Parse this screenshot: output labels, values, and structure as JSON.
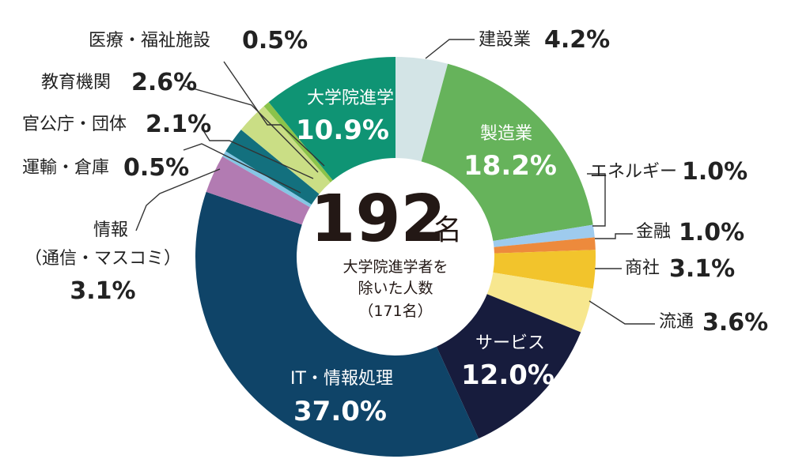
{
  "chart_data": {
    "type": "pie",
    "total": {
      "value": "192",
      "unit": "名",
      "caption_line1": "大学院進学者を",
      "caption_line2": "除いた人数",
      "caption_line3": "（171名）"
    },
    "slices": [
      {
        "label": "建設業",
        "value": 4.2,
        "display": "4.2%",
        "color": "#d3e4e6"
      },
      {
        "label": "製造業",
        "value": 18.2,
        "display": "18.2%",
        "color": "#66b35b"
      },
      {
        "label": "エネルギー",
        "value": 1.0,
        "display": "1.0%",
        "color": "#9ecbee"
      },
      {
        "label": "金融",
        "value": 1.0,
        "display": "1.0%",
        "color": "#ed8a3c"
      },
      {
        "label": "商社",
        "value": 3.1,
        "display": "3.1%",
        "color": "#f2c42c"
      },
      {
        "label": "流通",
        "value": 3.6,
        "display": "3.6%",
        "color": "#f7e78f"
      },
      {
        "label": "サービス",
        "value": 12.0,
        "display": "12.0%",
        "color": "#171c3d"
      },
      {
        "label": "IT・情報処理",
        "value": 37.0,
        "display": "37.0%",
        "color": "#0f4468"
      },
      {
        "label": "情報（通信・マスコミ）",
        "value": 3.1,
        "display": "3.1%",
        "color": "#b27bb2",
        "label_line1": "情報",
        "label_line2": "（通信・マスコミ）"
      },
      {
        "label": "運輸・倉庫",
        "value": 0.5,
        "display": "0.5%",
        "color": "#85c6e4"
      },
      {
        "label": "官公庁・団体",
        "value": 2.1,
        "display": "2.1%",
        "color": "#13707e"
      },
      {
        "label": "教育機関",
        "value": 2.6,
        "display": "2.6%",
        "color": "#cade85"
      },
      {
        "label": "医療・福祉施設",
        "value": 0.5,
        "display": "0.5%",
        "color": "#8bc34a"
      },
      {
        "label": "大学院進学",
        "value": 10.9,
        "display": "10.9%",
        "color": "#0f9474"
      }
    ]
  }
}
